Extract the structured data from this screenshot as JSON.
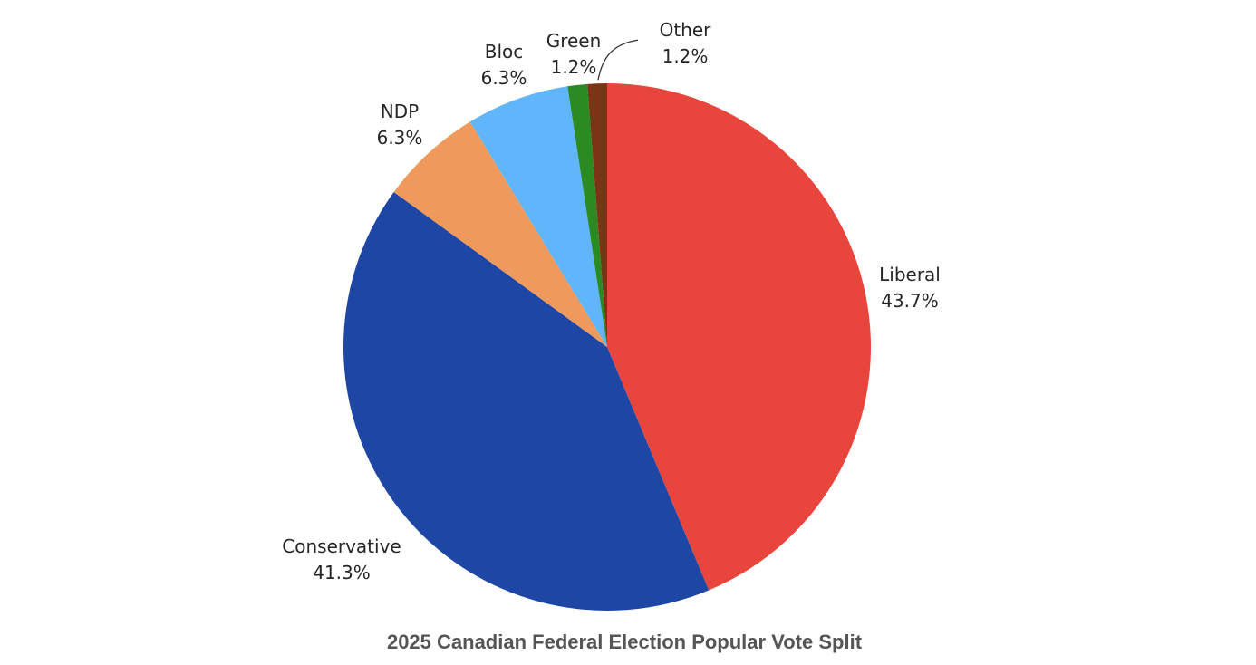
{
  "chart_data": {
    "type": "pie",
    "title": "2025 Canadian Federal Election Popular Vote Split",
    "start_angle": "12 o'clock",
    "direction": "clockwise",
    "unit": "%",
    "slices": [
      {
        "label": "Liberal",
        "value": 43.7,
        "display": "43.7%",
        "color": "#e8463d"
      },
      {
        "label": "Conservative",
        "value": 41.3,
        "display": "41.3%",
        "color": "#1e46a5"
      },
      {
        "label": "NDP",
        "value": 6.3,
        "display": "6.3%",
        "color": "#ef9a5c"
      },
      {
        "label": "Bloc",
        "value": 6.3,
        "display": "6.3%",
        "color": "#61b6fb"
      },
      {
        "label": "Green",
        "value": 1.2,
        "display": "1.2%",
        "color": "#2c8a22"
      },
      {
        "label": "Other",
        "value": 1.2,
        "display": "1.2%",
        "color": "#7a3416"
      }
    ]
  }
}
